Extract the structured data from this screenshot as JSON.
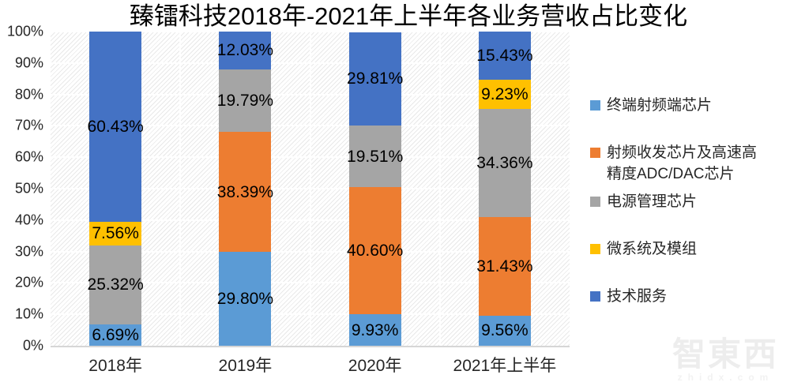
{
  "title": "臻镭科技2018年-2021年上半年各业务营收占比变化",
  "watermark": {
    "logo_text": "智東西",
    "domain": "zhidx.com"
  },
  "chart_data": {
    "type": "bar",
    "stacked": true,
    "percent_stacked": true,
    "title": "臻镭科技2018年-2021年上半年各业务营收占比变化",
    "categories": [
      "2018年",
      "2019年",
      "2020年",
      "2021年上半年"
    ],
    "series": [
      {
        "name": "终端射频端芯片",
        "color": "#5B9BD5",
        "values": [
          6.69,
          29.8,
          9.93,
          9.56
        ]
      },
      {
        "name": "射频收发芯片及高速高精度ADC/DAC芯片",
        "color": "#ED7D31",
        "values": [
          0,
          38.39,
          40.6,
          31.43
        ]
      },
      {
        "name": "电源管理芯片",
        "color": "#A5A5A5",
        "values": [
          25.32,
          19.79,
          19.51,
          34.36
        ]
      },
      {
        "name": "微系统及模组",
        "color": "#FFC000",
        "values": [
          7.56,
          0,
          0,
          9.23
        ]
      },
      {
        "name": "技术服务",
        "color": "#4472C4",
        "values": [
          60.43,
          12.03,
          29.81,
          15.43
        ]
      }
    ],
    "xlabel": "",
    "ylabel": "",
    "ylim": [
      0,
      100
    ],
    "yticks": [
      "100%",
      "90%",
      "80%",
      "70%",
      "60%",
      "50%",
      "40%",
      "30%",
      "20%",
      "10%",
      "0%"
    ],
    "ytick_step_percent": 10,
    "grid": true,
    "plot_background": "diagonal-hatch",
    "legend_position": "right",
    "data_labels": true,
    "label_format": "0.00%"
  }
}
